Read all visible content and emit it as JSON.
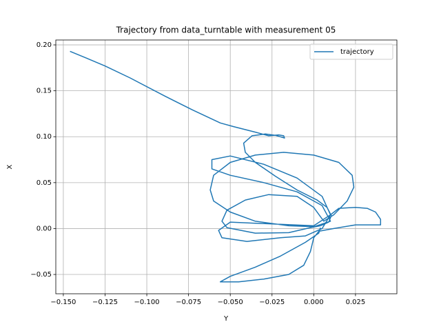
{
  "chart_data": {
    "type": "line",
    "title": "Trajectory from data_turntable with measurement 05",
    "xlabel": "Y",
    "ylabel": "X",
    "xlim": [
      -0.1545,
      0.0498
    ],
    "ylim": [
      -0.071,
      0.2053
    ],
    "xticks": [
      {
        "value": -0.15,
        "label": "−0.150"
      },
      {
        "value": -0.125,
        "label": "−0.125"
      },
      {
        "value": -0.1,
        "label": "−0.100"
      },
      {
        "value": -0.075,
        "label": "−0.075"
      },
      {
        "value": -0.05,
        "label": "−0.050"
      },
      {
        "value": -0.025,
        "label": "−0.025"
      },
      {
        "value": 0,
        "label": "0.000"
      },
      0.025
    ],
    "yticks": [
      {
        "value": -0.05,
        "label": "−0.05"
      },
      {
        "value": 0,
        "label": "0.00"
      },
      0.05,
      {
        "value": 0.1,
        "label": "0.10"
      },
      0.15,
      {
        "value": 0.2,
        "label": "0.20"
      }
    ],
    "grid": true,
    "legend": "upper right",
    "series": [
      {
        "name": "trajectory",
        "color": "#1f77b4",
        "x": [
          -0.146,
          -0.138,
          -0.125,
          -0.11,
          -0.089,
          -0.0725,
          -0.056,
          -0.048,
          -0.035,
          -0.027,
          -0.021,
          -0.018,
          -0.0175,
          -0.023,
          -0.029,
          -0.037,
          -0.042,
          -0.041,
          -0.035,
          -0.023,
          -0.01,
          0.002,
          0.008,
          0.0105,
          0.009,
          0.004,
          -0.002,
          -0.015,
          -0.035,
          -0.052,
          -0.055,
          -0.052,
          -0.041,
          -0.027,
          -0.01,
          0.0,
          0.006,
          0.012,
          0.02,
          0.024,
          0.023,
          0.015,
          0.0,
          -0.018,
          -0.035,
          -0.05,
          -0.06,
          -0.062,
          -0.06,
          -0.05,
          -0.035,
          -0.015,
          0.0,
          0.01,
          0.005,
          -0.01,
          -0.03,
          -0.05,
          -0.061,
          -0.061,
          -0.05,
          -0.03,
          -0.01,
          0.005,
          0.01,
          0.005,
          -0.005,
          -0.02,
          -0.04,
          -0.055,
          -0.057,
          -0.05,
          0.0,
          0.01,
          0.015,
          0.025,
          0.032,
          0.037,
          0.04,
          0.04,
          0.035,
          0.025,
          0.012,
          0.003,
          0.0,
          -0.002,
          -0.006,
          -0.015,
          -0.03,
          -0.045,
          -0.056,
          -0.05,
          -0.035,
          -0.02,
          -0.005,
          0.003,
          0.004
        ],
        "values": [
          0.193,
          0.187,
          0.177,
          0.164,
          0.144,
          0.129,
          0.115,
          0.111,
          0.105,
          0.101,
          0.102,
          0.101,
          0.0985,
          0.1015,
          0.103,
          0.101,
          0.093,
          0.083,
          0.072,
          0.057,
          0.042,
          0.031,
          0.023,
          0.014,
          0.007,
          0.003,
          0.001,
          -0.0045,
          -0.005,
          0.001,
          0.008,
          0.02,
          0.031,
          0.037,
          0.035,
          0.023,
          0.008,
          0.015,
          0.03,
          0.045,
          0.058,
          0.072,
          0.08,
          0.083,
          0.08,
          0.072,
          0.058,
          0.042,
          0.03,
          0.018,
          0.008,
          0.003,
          0.002,
          0.008,
          0.025,
          0.04,
          0.05,
          0.058,
          0.065,
          0.075,
          0.079,
          0.07,
          0.055,
          0.035,
          0.015,
          0.0,
          -0.008,
          -0.01,
          -0.014,
          -0.01,
          -0.002,
          0.007,
          0.003,
          0.015,
          0.022,
          0.023,
          0.022,
          0.018,
          0.01,
          0.004,
          0.004,
          0.004,
          0.0,
          -0.003,
          -0.01,
          -0.025,
          -0.04,
          -0.05,
          -0.055,
          -0.058,
          -0.058,
          -0.052,
          -0.042,
          -0.03,
          -0.015,
          -0.005,
          0.001
        ]
      }
    ]
  }
}
